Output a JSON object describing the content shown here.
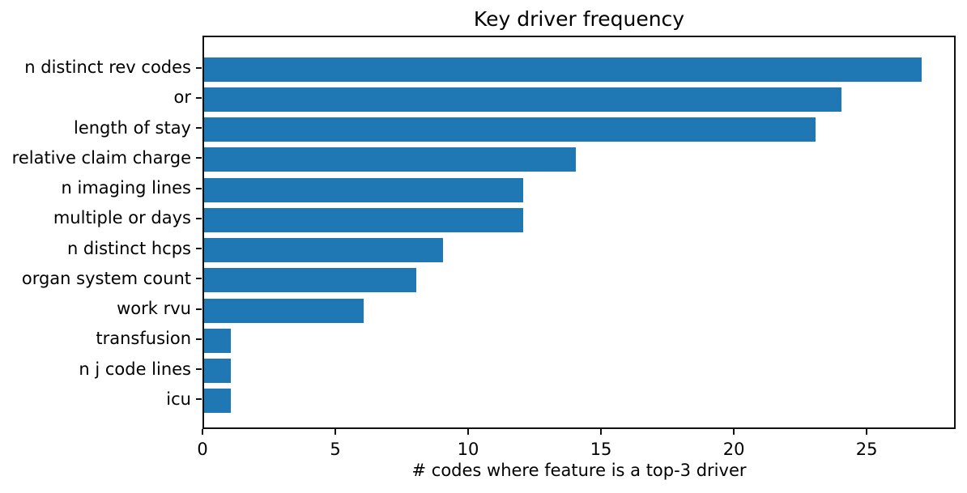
{
  "chart_data": {
    "type": "bar",
    "orientation": "horizontal",
    "title": "Key driver frequency",
    "xlabel": "# codes where feature is a top-3 driver",
    "ylabel": "",
    "categories": [
      "n distinct rev codes",
      "or",
      "length of stay",
      "relative claim charge",
      "n imaging lines",
      "multiple or days",
      "n distinct hcps",
      "organ system count",
      "work rvu",
      "transfusion",
      "n j code lines",
      "icu"
    ],
    "values": [
      27,
      24,
      23,
      14,
      12,
      12,
      9,
      8,
      6,
      1,
      1,
      1
    ],
    "xticks": [
      0,
      5,
      10,
      15,
      20,
      25
    ],
    "xlim": [
      0,
      28.35
    ],
    "bar_color": "#1f77b4",
    "axis_color": "#111111",
    "text_color": "#000000",
    "background": "#ffffff",
    "grid": false,
    "legend": null
  }
}
